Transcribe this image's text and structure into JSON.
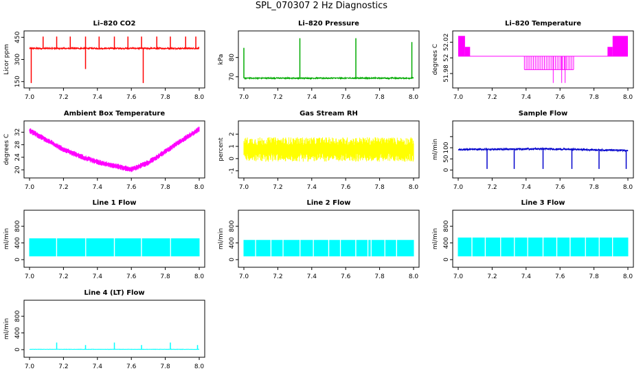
{
  "title": "SPL_070307  2 Hz Diagnostics",
  "chart_data": [
    {
      "id": "co2",
      "type": "line",
      "title": "Li–820 CO2",
      "ylabel": "Licor ppm",
      "color": "#ff0000",
      "xlim": [
        7.0,
        8.0
      ],
      "ylim": [
        130,
        470
      ],
      "xticks": [
        "7.0",
        "7.2",
        "7.4",
        "7.6",
        "7.8",
        "8.0"
      ],
      "yticks": [
        150,
        300,
        450
      ],
      "yticks_minor": [],
      "baseline": 375,
      "noise": 5,
      "trend": [],
      "spikes": [
        {
          "x": 7.01,
          "y": 140
        },
        {
          "x": 7.08,
          "y": 455
        },
        {
          "x": 7.16,
          "y": 455
        },
        {
          "x": 7.24,
          "y": 455
        },
        {
          "x": 7.33,
          "y": 455
        },
        {
          "x": 7.33,
          "y": 235
        },
        {
          "x": 7.41,
          "y": 455
        },
        {
          "x": 7.5,
          "y": 455
        },
        {
          "x": 7.58,
          "y": 455
        },
        {
          "x": 7.66,
          "y": 455
        },
        {
          "x": 7.67,
          "y": 140
        },
        {
          "x": 7.75,
          "y": 455
        },
        {
          "x": 7.83,
          "y": 455
        },
        {
          "x": 7.92,
          "y": 455
        },
        {
          "x": 7.98,
          "y": 455
        }
      ]
    },
    {
      "id": "pressure",
      "type": "line",
      "title": "Li–820 Pressure",
      "ylabel": "kPa",
      "color": "#00aa00",
      "xlim": [
        7.0,
        8.0
      ],
      "ylim": [
        66,
        92
      ],
      "xticks": [
        "7.0",
        "7.2",
        "7.4",
        "7.6",
        "7.8",
        "8.0"
      ],
      "yticks": [
        70,
        80
      ],
      "yticks_minor": [],
      "baseline": 69.3,
      "noise": 0.3,
      "trend": [],
      "spikes": [
        {
          "x": 7.0,
          "y": 85
        },
        {
          "x": 7.33,
          "y": 90
        },
        {
          "x": 7.66,
          "y": 90
        },
        {
          "x": 7.99,
          "y": 88
        }
      ]
    },
    {
      "id": "licor_temp",
      "type": "line",
      "title": "Li–820 Temperature",
      "ylabel": "degrees C",
      "color": "#ff00ff",
      "xlim": [
        7.0,
        8.0
      ],
      "ylim": [
        51.966,
        52.03
      ],
      "xticks": [
        "7.0",
        "7.2",
        "7.4",
        "7.6",
        "7.8",
        "8.0"
      ],
      "yticks": [
        51.98,
        52.0,
        52.02
      ],
      "yticks_minor": [],
      "baseline": 52.002,
      "noise": 0,
      "trend": [],
      "spikes": [],
      "blocks": [
        {
          "x0": 7.0,
          "x1": 7.04,
          "y0": 52.002,
          "y1": 52.028
        },
        {
          "x0": 7.04,
          "x1": 7.07,
          "y0": 52.002,
          "y1": 52.014
        },
        {
          "x0": 7.88,
          "x1": 7.91,
          "y0": 52.002,
          "y1": 52.014
        },
        {
          "x0": 7.91,
          "x1": 8.0,
          "y0": 52.002,
          "y1": 52.028
        }
      ],
      "dips": {
        "x0": 7.39,
        "x1": 7.68,
        "count": 28,
        "y": 51.985
      },
      "deep_dips": [
        {
          "x": 7.56,
          "y": 51.968
        },
        {
          "x": 7.61,
          "y": 51.968
        },
        {
          "x": 7.63,
          "y": 51.968
        }
      ]
    },
    {
      "id": "ambient_temp",
      "type": "band",
      "title": "Ambient Box Temperature",
      "ylabel": "degrees C",
      "color": "#ff00ff",
      "xlim": [
        7.0,
        8.0
      ],
      "ylim": [
        18.5,
        34.5
      ],
      "xticks": [
        "7.0",
        "7.2",
        "7.4",
        "7.6",
        "7.8",
        "8.0"
      ],
      "yticks": [
        20,
        24,
        28,
        32
      ],
      "yticks_minor": [],
      "trend": [
        {
          "x": 7.0,
          "y": 32.5
        },
        {
          "x": 7.1,
          "y": 29.5
        },
        {
          "x": 7.2,
          "y": 26.5
        },
        {
          "x": 7.3,
          "y": 24.3
        },
        {
          "x": 7.4,
          "y": 22.5
        },
        {
          "x": 7.5,
          "y": 21.3
        },
        {
          "x": 7.6,
          "y": 20.1
        },
        {
          "x": 7.7,
          "y": 22.3
        },
        {
          "x": 7.8,
          "y": 25.8
        },
        {
          "x": 7.9,
          "y": 29.5
        },
        {
          "x": 8.0,
          "y": 33.0
        }
      ],
      "band_width": 1.8,
      "spikes": []
    },
    {
      "id": "rh",
      "type": "band",
      "title": "Gas Stream RH",
      "ylabel": "percent",
      "color": "#ffff00",
      "xlim": [
        7.0,
        8.0
      ],
      "ylim": [
        -1.3,
        2.8
      ],
      "xticks": [
        "7.0",
        "7.2",
        "7.4",
        "7.6",
        "7.8",
        "8.0"
      ],
      "yticks": [
        -1,
        0,
        1,
        2
      ],
      "yticks_minor": [],
      "trend": [
        {
          "x": 7.0,
          "y": 0.75
        },
        {
          "x": 8.0,
          "y": 0.75
        }
      ],
      "band_width": 2.0,
      "spikes": []
    },
    {
      "id": "sample_flow",
      "type": "line",
      "title": "Sample Flow",
      "ylabel": "ml/min",
      "color": "#0000cc",
      "xlim": [
        7.0,
        8.0
      ],
      "ylim": [
        -20,
        205
      ],
      "xticks": [
        "7.0",
        "7.2",
        "7.4",
        "7.6",
        "7.8",
        "8.0"
      ],
      "yticks": [
        0,
        50,
        100
      ],
      "yticks_minor": [
        150
      ],
      "baseline": 91,
      "noise": 4,
      "trend": [
        {
          "x": 7.0,
          "y": 92
        },
        {
          "x": 7.5,
          "y": 95
        },
        {
          "x": 8.0,
          "y": 88
        }
      ],
      "spikes": [
        {
          "x": 7.17,
          "y": 5
        },
        {
          "x": 7.33,
          "y": 5
        },
        {
          "x": 7.5,
          "y": 5
        },
        {
          "x": 7.67,
          "y": 5
        },
        {
          "x": 7.83,
          "y": 5
        },
        {
          "x": 7.99,
          "y": 5
        }
      ]
    },
    {
      "id": "line1",
      "type": "bars",
      "title": "Line 1 Flow",
      "ylabel": "ml/min",
      "color": "#00ffff",
      "xlim": [
        7.0,
        8.0
      ],
      "ylim": [
        -100,
        1100
      ],
      "xticks": [
        "7.0",
        "7.2",
        "7.4",
        "7.6",
        "7.8",
        "8.0"
      ],
      "yticks": [
        0,
        400,
        800
      ],
      "yticks_minor": [],
      "low": 80,
      "high": 510,
      "gaps": [
        7.16,
        7.33,
        7.5,
        7.66,
        7.83
      ]
    },
    {
      "id": "line2",
      "type": "bars",
      "title": "Line 2 Flow",
      "ylabel": "ml/min",
      "color": "#00ffff",
      "xlim": [
        7.0,
        8.0
      ],
      "ylim": [
        -100,
        1100
      ],
      "xticks": [
        "7.0",
        "7.2",
        "7.4",
        "7.6",
        "7.8",
        "8.0"
      ],
      "yticks": [
        0,
        400,
        800
      ],
      "yticks_minor": [],
      "low": 80,
      "high": 470,
      "gaps": [
        7.07,
        7.16,
        7.23,
        7.33,
        7.41,
        7.5,
        7.57,
        7.66,
        7.73,
        7.75,
        7.83,
        7.9
      ]
    },
    {
      "id": "line3",
      "type": "bars",
      "title": "Line 3 Flow",
      "ylabel": "ml/min",
      "color": "#00ffff",
      "xlim": [
        7.0,
        8.0
      ],
      "ylim": [
        -100,
        1100
      ],
      "xticks": [
        "7.0",
        "7.2",
        "7.4",
        "7.6",
        "7.8",
        "8.0"
      ],
      "yticks": [
        0,
        400,
        800
      ],
      "yticks_minor": [],
      "low": 80,
      "high": 530,
      "gaps": [
        7.08,
        7.16,
        7.25,
        7.33,
        7.41,
        7.5,
        7.58,
        7.66,
        7.75,
        7.83,
        7.91
      ]
    },
    {
      "id": "line4",
      "type": "line",
      "title": "Line 4 (LT) Flow",
      "ylabel": "ml/min",
      "color": "#00ffff",
      "xlim": [
        7.0,
        8.0
      ],
      "ylim": [
        -100,
        1100
      ],
      "xticks": [
        "7.0",
        "7.2",
        "7.4",
        "7.6",
        "7.8",
        "8.0"
      ],
      "yticks": [
        0,
        400,
        800
      ],
      "yticks_minor": [],
      "baseline": 8,
      "noise": 3,
      "trend": [],
      "spikes": [
        {
          "x": 7.16,
          "y": 170
        },
        {
          "x": 7.33,
          "y": 110
        },
        {
          "x": 7.5,
          "y": 170
        },
        {
          "x": 7.66,
          "y": 110
        },
        {
          "x": 7.83,
          "y": 170
        },
        {
          "x": 7.99,
          "y": 110
        }
      ]
    }
  ]
}
